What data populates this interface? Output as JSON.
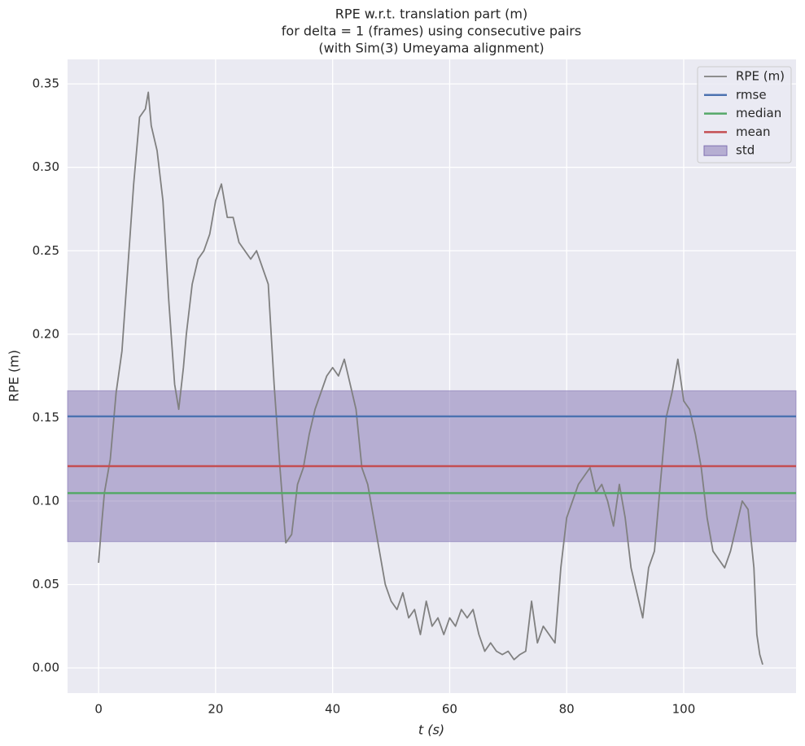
{
  "chart_data": {
    "type": "line",
    "title": [
      "RPE w.r.t. translation part (m)",
      "for delta = 1 (frames) using consecutive pairs",
      "(with Sim(3) Umeyama alignment)"
    ],
    "xlabel": "t (s)",
    "ylabel": "RPE (m)",
    "xlim": [
      -5.3,
      119.2
    ],
    "ylim": [
      -0.0151,
      0.3647
    ],
    "xticks": [
      0,
      20,
      40,
      60,
      80,
      100
    ],
    "yticks": [
      {
        "value": 0,
        "label": "0.00"
      },
      {
        "value": 0.05,
        "label": "0.05"
      },
      {
        "value": 0.1,
        "label": "0.10"
      },
      {
        "value": 0.15,
        "label": "0.15"
      },
      {
        "value": 0.2,
        "label": "0.20"
      },
      {
        "value": 0.25,
        "label": "0.25"
      },
      {
        "value": 0.3,
        "label": "0.30"
      },
      {
        "value": 0.35,
        "label": "0.35"
      }
    ],
    "grid": true,
    "legend": "upper right",
    "series": [
      {
        "name": "RPE (m)",
        "color": "#808080",
        "x": [
          0,
          0.5,
          1,
          2,
          3,
          4,
          5,
          6,
          7,
          8,
          8.5,
          9,
          10,
          11,
          12,
          13,
          13.7,
          14.5,
          15,
          16,
          17,
          18,
          19,
          20,
          21,
          22,
          23,
          24,
          25,
          26,
          27,
          28,
          29,
          30,
          31,
          32,
          33,
          34,
          35,
          36,
          37,
          38,
          39,
          40,
          41,
          42,
          43,
          44,
          45,
          46,
          47,
          48,
          49,
          50,
          51,
          52,
          53,
          54,
          55,
          56,
          57,
          58,
          59,
          60,
          61,
          62,
          63,
          64,
          65,
          66,
          67,
          68,
          69,
          70,
          71,
          72,
          73,
          74,
          75,
          76,
          77,
          78,
          79,
          80,
          81,
          82,
          83,
          84,
          85,
          86,
          87,
          88,
          89,
          90,
          91,
          92,
          93,
          94,
          95,
          96,
          97,
          98,
          99,
          100,
          101,
          102,
          103,
          104,
          105,
          106,
          107,
          108,
          109,
          110,
          111,
          112,
          112.5,
          113,
          113.5
        ],
        "values": [
          0.063,
          0.085,
          0.105,
          0.125,
          0.165,
          0.19,
          0.24,
          0.29,
          0.33,
          0.335,
          0.345,
          0.325,
          0.31,
          0.28,
          0.22,
          0.17,
          0.155,
          0.18,
          0.2,
          0.23,
          0.245,
          0.25,
          0.26,
          0.28,
          0.29,
          0.27,
          0.27,
          0.255,
          0.25,
          0.245,
          0.25,
          0.24,
          0.23,
          0.17,
          0.12,
          0.075,
          0.08,
          0.11,
          0.12,
          0.14,
          0.155,
          0.165,
          0.175,
          0.18,
          0.175,
          0.185,
          0.17,
          0.155,
          0.12,
          0.11,
          0.09,
          0.07,
          0.05,
          0.04,
          0.035,
          0.045,
          0.03,
          0.035,
          0.02,
          0.04,
          0.025,
          0.03,
          0.02,
          0.03,
          0.025,
          0.035,
          0.03,
          0.035,
          0.02,
          0.01,
          0.015,
          0.01,
          0.008,
          0.01,
          0.005,
          0.008,
          0.01,
          0.04,
          0.015,
          0.025,
          0.02,
          0.015,
          0.06,
          0.09,
          0.1,
          0.11,
          0.115,
          0.12,
          0.105,
          0.11,
          0.1,
          0.085,
          0.11,
          0.09,
          0.06,
          0.045,
          0.03,
          0.06,
          0.07,
          0.11,
          0.15,
          0.165,
          0.185,
          0.16,
          0.155,
          0.14,
          0.12,
          0.09,
          0.07,
          0.065,
          0.06,
          0.07,
          0.085,
          0.1,
          0.095,
          0.06,
          0.02,
          0.008,
          0.002
        ]
      }
    ],
    "stats": [
      {
        "name": "rmse",
        "color": "#4c72b0",
        "value": 0.1507
      },
      {
        "name": "median",
        "color": "#55a868",
        "value": 0.1048
      },
      {
        "name": "mean",
        "color": "#c44e52",
        "value": 0.1209
      }
    ],
    "std": {
      "name": "std",
      "color": "#8172b2",
      "value": 0.0452
    }
  }
}
